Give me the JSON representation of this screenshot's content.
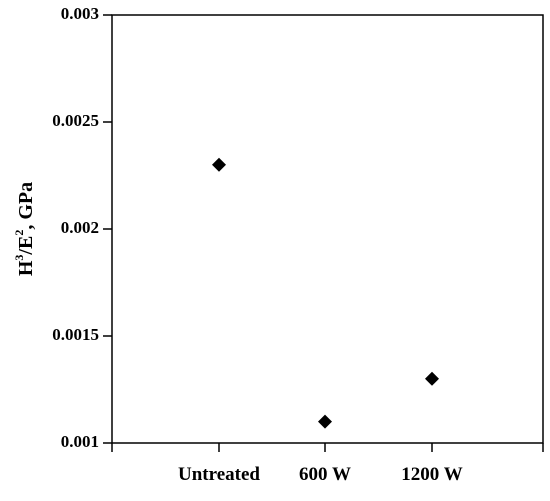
{
  "chart_data": {
    "type": "scatter",
    "title": "",
    "xlabel": "",
    "ylabel": {
      "base1": "H",
      "sup1": "3",
      "base2": "/E",
      "sup2": "2",
      "rest": ", GPa"
    },
    "categories": [
      "Untreated",
      "600 W",
      "1200 W"
    ],
    "series": [
      {
        "values": [
          0.0023,
          0.0011,
          0.0013
        ]
      }
    ],
    "ylim": [
      0.001,
      0.003
    ],
    "yticks": [
      0.001,
      0.0015,
      0.002,
      0.0025,
      0.003
    ],
    "ytick_labels": [
      "0.001",
      "0.0015",
      "0.002",
      "0.0025",
      "0.003"
    ],
    "grid": false,
    "marker": "diamond",
    "marker_color": "#000000"
  }
}
